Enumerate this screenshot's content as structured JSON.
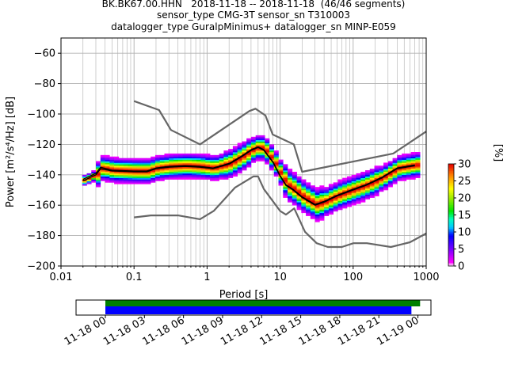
{
  "title_lines": [
    "BK.BK67.00.HHN   2018-11-18 -- 2018-11-18  (46/46 segments)",
    "sensor_type CMG-3T sensor_sn T310003",
    "datalogger_type GuralpMinimus+ datalogger_sn MINP-E059"
  ],
  "chart_data": [
    {
      "type": "heatmap",
      "title": "BK.BK67.00.HHN   2018-11-18 -- 2018-11-18  (46/46 segments)",
      "xlabel": "Period [s]",
      "ylabel": "Power [m²/s⁴/Hz] [dB]",
      "xscale": "log",
      "xlim": [
        0.01,
        1000
      ],
      "ylim": [
        -200,
        -50
      ],
      "grid": true,
      "x_tick_labels": [
        "0.01",
        "0.1",
        "1",
        "10",
        "100",
        "1000"
      ],
      "y_tick_labels": [
        "−200",
        "−180",
        "−160",
        "−140",
        "−120",
        "−100",
        "−80",
        "−60"
      ],
      "colorbar": {
        "label": "[%]",
        "range": [
          0,
          30
        ],
        "tick_labels": [
          "0",
          "5",
          "10",
          "15",
          "20",
          "25",
          "30"
        ]
      },
      "series": [
        {
          "role": "noise model high",
          "color": "#666666",
          "x": [
            0.1,
            0.22,
            0.32,
            0.8,
            3.8,
            4.6,
            6.3,
            7.9,
            15.4,
            20,
            354,
            1000
          ],
          "y": [
            -91.5,
            -97.4,
            -110.5,
            -120,
            -98,
            -96.5,
            -101,
            -113.5,
            -120,
            -138,
            -126,
            -111.5
          ]
        },
        {
          "role": "noise model low",
          "color": "#666666",
          "x": [
            0.1,
            0.17,
            0.4,
            0.8,
            1.24,
            2.4,
            4.3,
            5,
            6,
            10,
            12,
            15.6,
            21.9,
            31.6,
            45,
            70,
            101,
            154,
            328,
            600,
            1000
          ],
          "y": [
            -168,
            -166.7,
            -166.7,
            -169.2,
            -163.7,
            -148.5,
            -141.1,
            -141.1,
            -149.4,
            -163.8,
            -166.2,
            -162.1,
            -177.5,
            -185,
            -187.5,
            -187.5,
            -185,
            -185,
            -187.5,
            -184.4,
            -178.6
          ]
        },
        {
          "role": "mean",
          "color": "#000000",
          "x": [
            0.02,
            0.03,
            0.035,
            0.05,
            0.1,
            0.15,
            0.2,
            0.3,
            0.5,
            0.8,
            1.2,
            2,
            3,
            4,
            5,
            6,
            8,
            10,
            12,
            15,
            20,
            30,
            40,
            60,
            100,
            150,
            250,
            400,
            700
          ],
          "y": [
            -144,
            -140,
            -136,
            -137.5,
            -138,
            -138,
            -136,
            -135,
            -134.5,
            -135,
            -136,
            -133,
            -128,
            -124,
            -122,
            -124,
            -132,
            -141,
            -147,
            -150,
            -155,
            -160,
            -158,
            -154,
            -150,
            -147,
            -142,
            -136,
            -134
          ]
        },
        {
          "role": "mode",
          "color": "#000000",
          "x": [
            0.02,
            0.03,
            0.035,
            0.05,
            0.1,
            0.15,
            0.2,
            0.3,
            0.5,
            0.8,
            1.2,
            2,
            3,
            4,
            5,
            6,
            8,
            10,
            12,
            15,
            20,
            30,
            40,
            60,
            100,
            150,
            250,
            400,
            700
          ],
          "y": [
            -143,
            -139,
            -135,
            -137,
            -137.5,
            -137.5,
            -135.5,
            -134.5,
            -134,
            -134.5,
            -135.5,
            -132.5,
            -127.5,
            -123.5,
            -121.5,
            -123.5,
            -131.5,
            -140.5,
            -146.5,
            -149.5,
            -154.5,
            -159.5,
            -157.5,
            -153.5,
            -149.5,
            -146.5,
            -141.5,
            -135.5,
            -133.5
          ]
        }
      ]
    },
    {
      "type": "bar",
      "title": "",
      "xlabel": "",
      "ylabel": "",
      "x_tick_labels": [
        "11-18 00",
        "11-18 03",
        "11-18 06",
        "11-18 09",
        "11-18 12",
        "11-18 15",
        "11-18 18",
        "11-18 21",
        "11-19 00"
      ],
      "xlim": [
        "2018-11-17T21:45",
        "2018-11-19T01:00"
      ],
      "series": [
        {
          "role": "data coverage",
          "color": "#008000",
          "start": "2018-11-18T00:00",
          "end": "2018-11-19T00:10"
        },
        {
          "role": "psd segments",
          "color": "#0000ff",
          "start": "2018-11-18T00:00",
          "end": "2018-11-18T23:30"
        }
      ]
    }
  ]
}
